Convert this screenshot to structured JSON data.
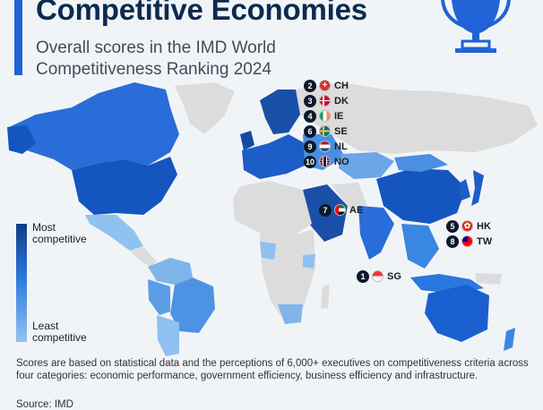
{
  "title": "Competitive Economies",
  "subtitle": "Overall scores in the IMD World Competitiveness Ranking 2024",
  "legend": {
    "high": "Most competitive",
    "low": "Least competitive"
  },
  "colors": {
    "accent": "#1f63d6",
    "most": "#0e3d82",
    "mid": "#2a78df",
    "least": "#93c3f0",
    "no_data": "#dcdcdc"
  },
  "rankings": [
    {
      "rank": "1",
      "code": "SG"
    },
    {
      "rank": "2",
      "code": "CH"
    },
    {
      "rank": "3",
      "code": "DK"
    },
    {
      "rank": "4",
      "code": "IE"
    },
    {
      "rank": "5",
      "code": "HK"
    },
    {
      "rank": "6",
      "code": "SE"
    },
    {
      "rank": "7",
      "code": "AE"
    },
    {
      "rank": "8",
      "code": "TW"
    },
    {
      "rank": "9",
      "code": "NL"
    },
    {
      "rank": "10",
      "code": "NO"
    }
  ],
  "footnote": "Scores are based on statistical data and the perceptions of 6,000+ executives on competitiveness criteria across four categories: economic performance, government efficiency, business efficiency and infrastructure.",
  "source": "Source: IMD",
  "icons": [
    "trophy-icon"
  ]
}
